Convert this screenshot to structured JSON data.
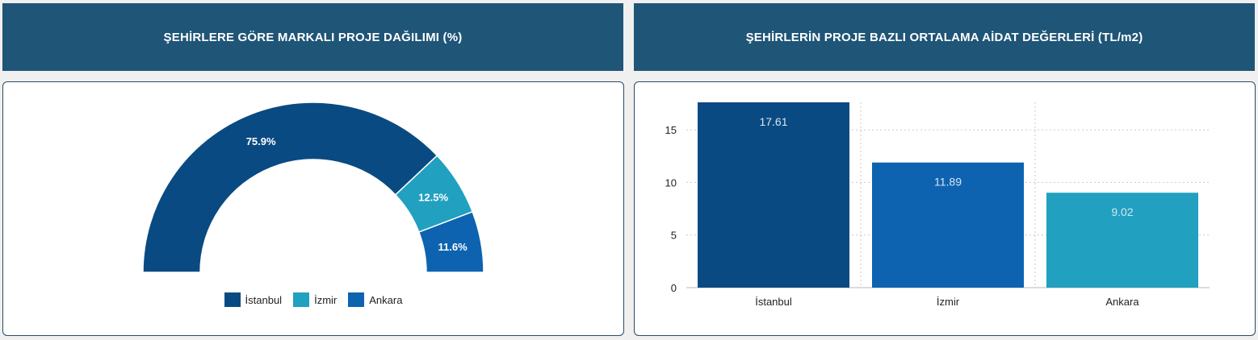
{
  "colors": {
    "header_bg": "#1f5577",
    "istanbul": "#0a4a82",
    "izmir": "#21a0c0",
    "ankara": "#0e63b0"
  },
  "headers": {
    "left": "ŞEHİRLERE GÖRE MARKALI PROJE DAĞILIMI (%)",
    "right": "ŞEHİRLERİN PROJE BAZLI ORTALAMA AİDAT DEĞERLERİ (TL/m2)"
  },
  "chart_data": [
    {
      "type": "pie",
      "variant": "semi-donut",
      "title": "ŞEHİRLERE GÖRE MARKALI PROJE DAĞILIMI (%)",
      "categories": [
        "İstanbul",
        "İzmir",
        "Ankara"
      ],
      "values": [
        75.9,
        12.5,
        11.6
      ],
      "labels": [
        "75.9%",
        "12.5%",
        "11.6%"
      ],
      "colors": [
        "#0a4a82",
        "#21a0c0",
        "#0e63b0"
      ],
      "legend": "bottom-center"
    },
    {
      "type": "bar",
      "title": "ŞEHİRLERİN PROJE BAZLI ORTALAMA AİDAT DEĞERLERİ (TL/m2)",
      "categories": [
        "İstanbul",
        "İzmir",
        "Ankara"
      ],
      "values": [
        17.61,
        11.89,
        9.02
      ],
      "labels": [
        "17.61",
        "11.89",
        "9.02"
      ],
      "colors": [
        "#0a4a82",
        "#0e63b0",
        "#21a0c0"
      ],
      "ylim": [
        0,
        17.61
      ],
      "yticks": [
        0,
        5,
        10,
        15
      ],
      "grid": true
    }
  ]
}
